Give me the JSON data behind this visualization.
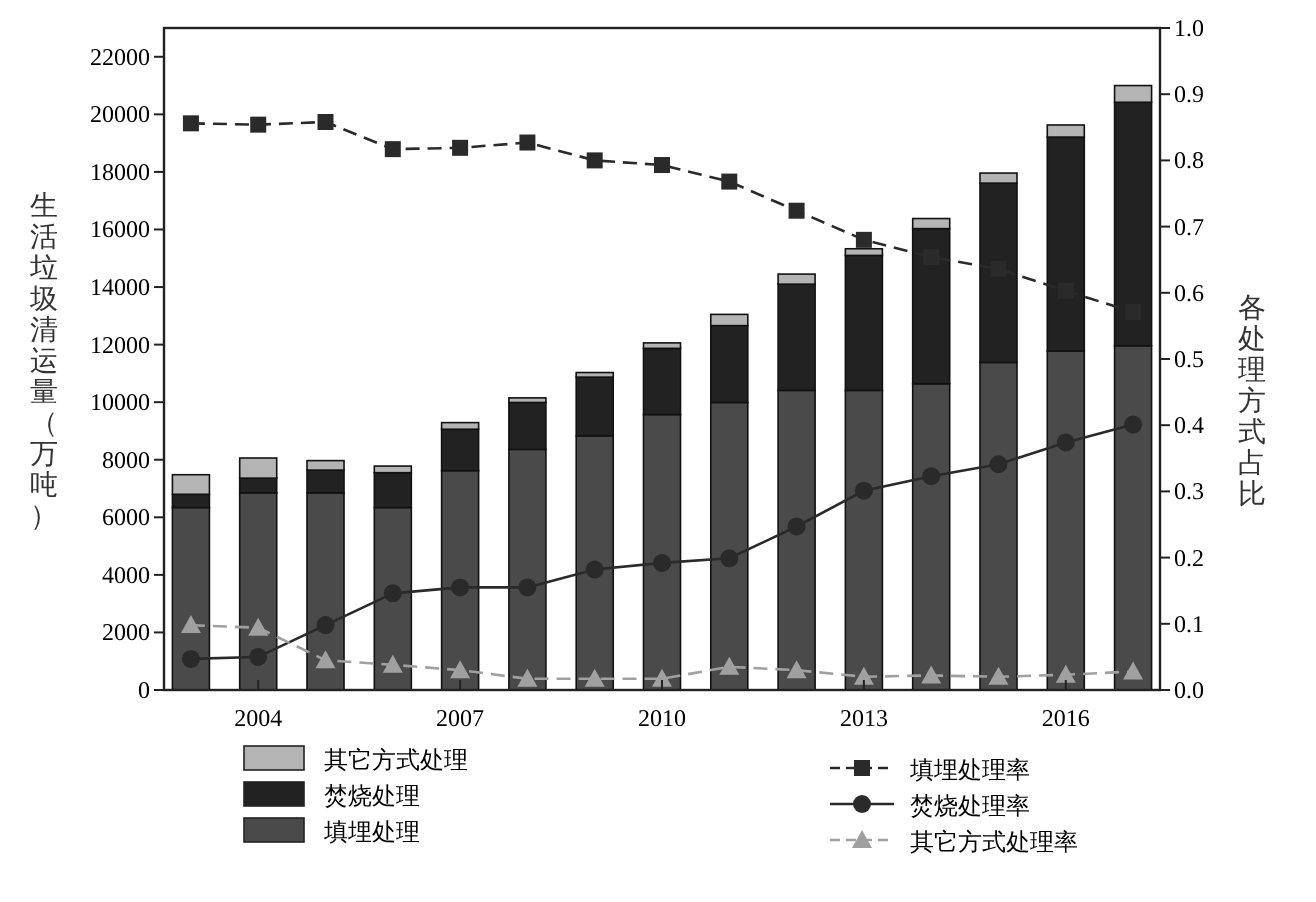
{
  "chart_data": {
    "type": "bar",
    "ylabel": "生活垃圾清运量（万吨）",
    "y2label": "各处理方式占比",
    "x": [
      2003,
      2004,
      2005,
      2006,
      2007,
      2008,
      2009,
      2010,
      2011,
      2012,
      2013,
      2014,
      2015,
      2016,
      2017
    ],
    "xlim": [
      2002.6,
      2017.4
    ],
    "xticks": [
      2004,
      2007,
      2010,
      2013,
      2016
    ],
    "ylim": [
      0,
      23000
    ],
    "yticks": [
      0,
      2000,
      4000,
      6000,
      8000,
      10000,
      12000,
      14000,
      16000,
      18000,
      20000,
      22000
    ],
    "y2lim": [
      0,
      1.0
    ],
    "y2ticks": [
      {
        "value": 0,
        "label": "0.0"
      },
      0.1,
      0.2,
      0.3,
      0.4,
      0.5,
      0.6,
      0.7,
      0.8,
      0.9,
      {
        "value": 1,
        "label": "1.0"
      }
    ],
    "stacked": true,
    "legend": "bottom",
    "grid": false,
    "series": [
      {
        "name": "填埋处理",
        "color": "#4a4a4a",
        "values": [
          6340,
          6850,
          6850,
          6340,
          7620,
          8360,
          8830,
          9570,
          9990,
          10410,
          10410,
          10640,
          11380,
          11780,
          11960
        ]
      },
      {
        "name": "焚烧处理",
        "color": "#222222",
        "values": [
          460,
          510,
          790,
          1210,
          1440,
          1630,
          2040,
          2300,
          2670,
          3690,
          4690,
          5390,
          6230,
          7430,
          8460
        ]
      },
      {
        "name": "其它方式处理",
        "color": "#b4b4b4",
        "values": [
          680,
          700,
          330,
          230,
          230,
          160,
          160,
          190,
          390,
          350,
          230,
          350,
          350,
          420,
          580
        ]
      },
      {
        "name": "填埋处理率",
        "type": "line",
        "axis": "y2",
        "color": "#2a2a2a",
        "marker": "square",
        "line_style": "dashed",
        "values": [
          0.856,
          0.854,
          0.858,
          0.817,
          0.819,
          0.827,
          0.8,
          0.793,
          0.768,
          0.724,
          0.68,
          0.654,
          0.636,
          0.603,
          0.571
        ]
      },
      {
        "name": "焚烧处理率",
        "type": "line",
        "axis": "y2",
        "color": "#2a2a2a",
        "marker": "circle",
        "line_style": "solid",
        "values": [
          0.047,
          0.05,
          0.098,
          0.146,
          0.155,
          0.155,
          0.182,
          0.192,
          0.199,
          0.247,
          0.301,
          0.323,
          0.341,
          0.374,
          0.401
        ]
      },
      {
        "name": "其它方式处理率",
        "type": "line",
        "axis": "y2",
        "color": "#a0a0a0",
        "marker": "triangle",
        "line_style": "dashed",
        "values": [
          0.098,
          0.094,
          0.045,
          0.038,
          0.03,
          0.017,
          0.017,
          0.017,
          0.035,
          0.03,
          0.02,
          0.022,
          0.02,
          0.023,
          0.028
        ]
      }
    ]
  }
}
